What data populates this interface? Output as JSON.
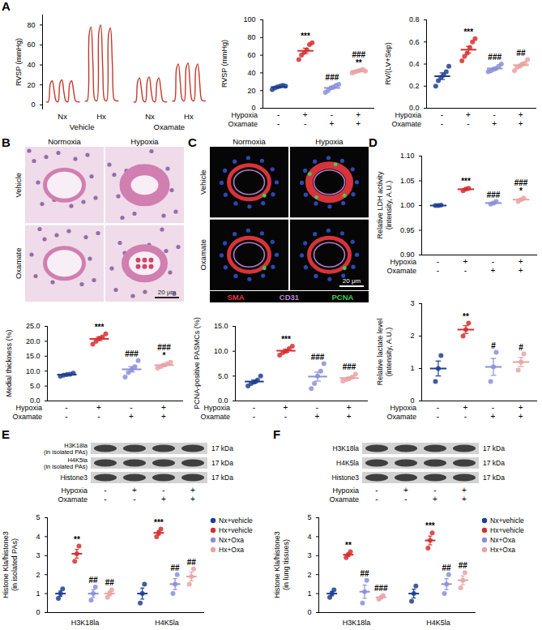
{
  "panel_labels": [
    "A",
    "B",
    "C",
    "D",
    "E",
    "F"
  ],
  "chart_data": [
    {
      "panel": "A",
      "type": "line",
      "ylabel": "RVSP (mmHg)",
      "ylim": [
        -5,
        90
      ],
      "yticks": [
        0,
        20,
        40,
        60,
        80
      ],
      "series": [
        {
          "name": "Nx",
          "group": "Vehicle",
          "color": "#c0392b",
          "values": [
            3,
            3,
            21,
            24,
            14,
            4,
            3,
            22,
            25,
            13,
            4,
            3,
            21,
            24,
            14,
            4,
            3,
            3
          ]
        },
        {
          "name": "Hx",
          "group": "Vehicle",
          "color": "#c0392b",
          "values": [
            4,
            4,
            70,
            78,
            40,
            5,
            4,
            72,
            80,
            38,
            5,
            4,
            70,
            77,
            40,
            5,
            4,
            4
          ]
        },
        {
          "name": "Nx",
          "group": "Oxamate",
          "color": "#c0392b",
          "values": [
            3,
            3,
            23,
            27,
            15,
            4,
            3,
            24,
            28,
            14,
            4,
            3,
            23,
            27,
            15,
            4,
            3,
            3
          ]
        },
        {
          "name": "Hx",
          "group": "Oxamate",
          "color": "#c0392b",
          "values": [
            4,
            4,
            36,
            41,
            22,
            5,
            4,
            37,
            42,
            21,
            5,
            4,
            36,
            41,
            22,
            5,
            4,
            4
          ]
        }
      ]
    },
    {
      "panel": "A",
      "type": "dot",
      "ylabel": "RVSP (mmHg)",
      "ylim": [
        0,
        100
      ],
      "yticks": [
        0,
        20,
        40,
        60,
        80,
        100
      ],
      "colors": [
        "#1f3f8f",
        "#d62f2f",
        "#8c8fd9",
        "#e9a3a3"
      ],
      "values": [
        24,
        65,
        23,
        42
      ],
      "errors": [
        0.7,
        3.0,
        1.4,
        0.6
      ],
      "points": [
        [
          21,
          23,
          24,
          25,
          26,
          25
        ],
        [
          55,
          60,
          63,
          66,
          72,
          74
        ],
        [
          18,
          20,
          23,
          24,
          26,
          27
        ],
        [
          40,
          41,
          42,
          43,
          44,
          42
        ]
      ],
      "significance": [
        [],
        [
          "***"
        ],
        [
          "###"
        ],
        [
          "###",
          "**"
        ]
      ],
      "conditions": [
        {
          "name": "Hypoxia",
          "signs": [
            "-",
            "+",
            "-",
            "+"
          ]
        },
        {
          "name": "Oxamate",
          "signs": [
            "-",
            "-",
            "+",
            "+"
          ]
        }
      ]
    },
    {
      "panel": "A",
      "type": "dot",
      "ylabel": "RV/(LV+Sep)",
      "ylim": [
        0,
        0.8
      ],
      "yticks": [
        {
          "value": 0,
          "label": "0.0"
        },
        0.2,
        0.4,
        0.6,
        0.8
      ],
      "colors": [
        "#1f3f8f",
        "#d62f2f",
        "#8c8fd9",
        "#e9a3a3"
      ],
      "values": [
        0.29,
        0.53,
        0.36,
        0.39
      ],
      "errors": [
        0.03,
        0.03,
        0.01,
        0.01
      ],
      "points": [
        [
          0.2,
          0.25,
          0.28,
          0.3,
          0.33,
          0.38
        ],
        [
          0.43,
          0.47,
          0.5,
          0.55,
          0.6,
          0.63
        ],
        [
          0.33,
          0.34,
          0.35,
          0.36,
          0.38,
          0.4
        ],
        [
          0.34,
          0.37,
          0.38,
          0.4,
          0.41,
          0.44
        ]
      ],
      "significance": [
        [],
        [
          "***"
        ],
        [
          "###"
        ],
        [
          "##"
        ]
      ],
      "conditions": [
        {
          "name": "Hypoxia",
          "signs": [
            "-",
            "+",
            "-",
            "+"
          ]
        },
        {
          "name": "Oxamate",
          "signs": [
            "-",
            "-",
            "+",
            "+"
          ]
        }
      ]
    },
    {
      "panel": "B",
      "type": "dot",
      "ylabel": "Medial thickness (%)",
      "ylim": [
        0,
        25
      ],
      "yticks": [
        {
          "value": 0,
          "label": "0.0"
        },
        {
          "value": 5,
          "label": "5.0"
        },
        {
          "value": 10,
          "label": "10.0"
        },
        {
          "value": 15,
          "label": "15.0"
        },
        {
          "value": 20,
          "label": "20.0"
        },
        {
          "value": 25,
          "label": "25.0"
        }
      ],
      "colors": [
        "#1f3f8f",
        "#d62f2f",
        "#8c8fd9",
        "#e9a3a3"
      ],
      "values": [
        8.8,
        20.8,
        10.6,
        12.0
      ],
      "errors": [
        0.2,
        0.6,
        0.9,
        0.4
      ],
      "points": [
        [
          8.3,
          8.6,
          8.8,
          9.0,
          9.3
        ],
        [
          19.0,
          20.0,
          21.0,
          21.5,
          22.5
        ],
        [
          8.0,
          9.5,
          10.5,
          11.5,
          13.5
        ],
        [
          11.0,
          11.5,
          12.0,
          12.5,
          13.0
        ]
      ],
      "significance": [
        [],
        [
          "***"
        ],
        [
          "###"
        ],
        [
          "###",
          "*"
        ]
      ],
      "conditions": [
        {
          "name": "Hypoxia",
          "signs": [
            "-",
            "+",
            "-",
            "+"
          ]
        },
        {
          "name": "Oxamate",
          "signs": [
            "-",
            "-",
            "+",
            "+"
          ]
        }
      ]
    },
    {
      "panel": "C",
      "type": "dot",
      "ylabel": "PCNA-positive PASMCs (%)",
      "ylim": [
        0,
        15
      ],
      "yticks": [
        {
          "value": 0,
          "label": "0.0"
        },
        {
          "value": 5,
          "label": "5.0"
        },
        {
          "value": 10,
          "label": "10.0"
        },
        {
          "value": 15,
          "label": "15.0"
        }
      ],
      "colors": [
        "#1f3f8f",
        "#d62f2f",
        "#8c8fd9",
        "#e9a3a3"
      ],
      "values": [
        3.9,
        10.1,
        4.9,
        4.6
      ],
      "errors": [
        0.3,
        0.3,
        0.9,
        0.2
      ],
      "points": [
        [
          3.0,
          3.5,
          3.8,
          4.2,
          5.0
        ],
        [
          9.2,
          9.7,
          10.0,
          10.5,
          11.0
        ],
        [
          2.5,
          3.5,
          5.0,
          6.0,
          7.5
        ],
        [
          4.0,
          4.3,
          4.5,
          4.8,
          5.4
        ]
      ],
      "significance": [
        [],
        [
          "***"
        ],
        [
          "###"
        ],
        [
          "###"
        ]
      ],
      "conditions": [
        {
          "name": "Hypoxia",
          "signs": [
            "-",
            "+",
            "-",
            "+"
          ]
        },
        {
          "name": "Oxamate",
          "signs": [
            "-",
            "-",
            "+",
            "+"
          ]
        }
      ]
    },
    {
      "panel": "D",
      "type": "dot",
      "ylabel": "Relative LDH activity\n(intensity, A.U.)",
      "ylim": [
        0.9,
        1.1
      ],
      "yticks": [
        {
          "value": 0.9,
          "label": "0.90"
        },
        0.95,
        {
          "value": 1,
          "label": "1.00"
        },
        1.05,
        {
          "value": 1.1,
          "label": "1.10"
        }
      ],
      "colors": [
        "#1f3f8f",
        "#d62f2f",
        "#8c8fd9",
        "#e9a3a3"
      ],
      "values": [
        1.0,
        1.033,
        1.005,
        1.012
      ],
      "errors": [
        0.001,
        0.002,
        0.002,
        0.002
      ],
      "points": [
        [
          1.0,
          1.0,
          1.001
        ],
        [
          1.03,
          1.033,
          1.035
        ],
        [
          1.003,
          1.005,
          1.008
        ],
        [
          1.008,
          1.012,
          1.015
        ]
      ],
      "significance": [
        [],
        [
          "***"
        ],
        [
          "###"
        ],
        [
          "###",
          "*"
        ]
      ],
      "conditions": [
        {
          "name": "Hypoxia",
          "signs": [
            "-",
            "+",
            "-",
            "+"
          ]
        },
        {
          "name": "Oxamate",
          "signs": [
            "-",
            "-",
            "+",
            "+"
          ]
        }
      ]
    },
    {
      "panel": "D",
      "type": "dot",
      "ylabel": "Relative lactate level\n(intensity, A.U.)",
      "ylim": [
        0,
        3
      ],
      "yticks": [
        0,
        1,
        2,
        3
      ],
      "colors": [
        "#1f3f8f",
        "#d62f2f",
        "#8c8fd9",
        "#e9a3a3"
      ],
      "values": [
        1.0,
        2.2,
        1.05,
        1.2
      ],
      "errors": [
        0.23,
        0.12,
        0.26,
        0.14
      ],
      "points": [
        [
          0.6,
          1.0,
          1.4
        ],
        [
          2.0,
          2.2,
          2.4
        ],
        [
          0.6,
          1.05,
          1.5
        ],
        [
          0.95,
          1.2,
          1.45
        ]
      ],
      "significance": [
        [],
        [
          "**"
        ],
        [
          "#"
        ],
        [
          "#"
        ]
      ],
      "conditions": [
        {
          "name": "Hypoxia",
          "signs": [
            "-",
            "+",
            "-",
            "+"
          ]
        },
        {
          "name": "Oxamate",
          "signs": [
            "-",
            "-",
            "+",
            "+"
          ]
        }
      ]
    },
    {
      "panel": "E",
      "type": "grouped_dot",
      "ylabel": "Histone Kla/histone3\n(in isolated PAs)",
      "ylim": [
        0,
        5
      ],
      "yticks": [
        0,
        1,
        2,
        3,
        4,
        5
      ],
      "categories": [
        "H3K18la",
        "H4K5la"
      ],
      "legend": "top-right",
      "series": [
        {
          "name": "Nx+vehicle",
          "color": "#1f3f8f",
          "values": [
            1.0,
            1.0
          ],
          "errors": [
            0.14,
            0.29
          ],
          "points": [
            [
              0.75,
              1.0,
              1.25
            ],
            [
              0.5,
              1.0,
              1.5
            ]
          ],
          "significance": [
            [],
            []
          ]
        },
        {
          "name": "Hx+vehicle",
          "color": "#d62f2f",
          "values": [
            3.1,
            4.2
          ],
          "errors": [
            0.23,
            0.12
          ],
          "points": [
            [
              2.7,
              3.1,
              3.5
            ],
            [
              4.0,
              4.2,
              4.4
            ]
          ],
          "significance": [
            [
              "**"
            ],
            [
              "***"
            ]
          ]
        },
        {
          "name": "Nx+Oxa",
          "color": "#8c8fd9",
          "values": [
            1.0,
            1.5
          ],
          "errors": [
            0.2,
            0.29
          ],
          "points": [
            [
              0.65,
              1.0,
              1.35
            ],
            [
              1.0,
              1.5,
              2.0
            ]
          ],
          "significance": [
            [
              "##"
            ],
            [
              "##"
            ]
          ]
        },
        {
          "name": "Hx+Oxa",
          "color": "#e9a3a3",
          "values": [
            1.0,
            1.9
          ],
          "errors": [
            0.12,
            0.23
          ],
          "points": [
            [
              0.8,
              1.0,
              1.2
            ],
            [
              1.5,
              1.9,
              2.3
            ]
          ],
          "significance": [
            [
              "##"
            ],
            [
              "##"
            ]
          ]
        }
      ]
    },
    {
      "panel": "F",
      "type": "grouped_dot",
      "ylabel": "Histone Kla/histone3\n(in lung tissues)",
      "ylim": [
        0,
        5
      ],
      "yticks": [
        0,
        1,
        2,
        3,
        4,
        5
      ],
      "categories": [
        "H3K18la",
        "H4K5la"
      ],
      "legend": "top-right",
      "series": [
        {
          "name": "Nx+vehicle",
          "color": "#1f3f8f",
          "values": [
            1.0,
            1.0
          ],
          "errors": [
            0.12,
            0.23
          ],
          "points": [
            [
              0.8,
              1.0,
              1.2
            ],
            [
              0.6,
              1.0,
              1.4
            ]
          ],
          "significance": [
            [],
            []
          ]
        },
        {
          "name": "Hx+vehicle",
          "color": "#d62f2f",
          "values": [
            3.05,
            3.8
          ],
          "errors": [
            0.09,
            0.23
          ],
          "points": [
            [
              2.9,
              3.05,
              3.2
            ],
            [
              3.4,
              3.8,
              4.2
            ]
          ],
          "significance": [
            [
              "**"
            ],
            [
              "***"
            ]
          ]
        },
        {
          "name": "Nx+Oxa",
          "color": "#8c8fd9",
          "values": [
            1.1,
            1.5
          ],
          "errors": [
            0.35,
            0.29
          ],
          "points": [
            [
              0.5,
              1.1,
              1.7
            ],
            [
              1.0,
              1.5,
              2.0
            ]
          ],
          "significance": [
            [
              "##"
            ],
            [
              "##"
            ]
          ]
        },
        {
          "name": "Hx+Oxa",
          "color": "#e9a3a3",
          "values": [
            0.8,
            1.7
          ],
          "errors": [
            0.06,
            0.23
          ],
          "points": [
            [
              0.7,
              0.8,
              0.9
            ],
            [
              1.3,
              1.7,
              2.1
            ]
          ],
          "significance": [
            [
              "###"
            ],
            [
              "##"
            ]
          ]
        }
      ]
    }
  ],
  "images": [
    {
      "panel": "B",
      "kind": "histology",
      "columns": [
        "Normoxia",
        "Hypoxia"
      ],
      "rows": [
        "Vehicle",
        "Oxamate"
      ],
      "scale_bar": "20 μm"
    },
    {
      "panel": "C",
      "kind": "immunofluorescence",
      "columns": [
        "Normoxia",
        "Hypoxia"
      ],
      "rows": [
        "Vehicle",
        "Oxamate"
      ],
      "scale_bar": "20 μm",
      "stains": [
        {
          "name": "SMA",
          "color": "#e0393e"
        },
        {
          "name": "CD31",
          "color": "#c08ad8"
        },
        {
          "name": "PCNA",
          "color": "#3fcf55"
        }
      ]
    }
  ],
  "blots": [
    {
      "panel": "E",
      "rows": [
        [
          "H3K18la",
          "(in isolated PAs)"
        ],
        [
          "H4K5la",
          "(in isolated PAs)"
        ],
        [
          "Histone3"
        ]
      ],
      "size": "17 kDa",
      "conditions": [
        {
          "name": "Hypoxia",
          "signs": [
            "-",
            "+",
            "-",
            "+"
          ]
        },
        {
          "name": "Oxamate",
          "signs": [
            "-",
            "-",
            "+",
            "+"
          ]
        }
      ]
    },
    {
      "panel": "F",
      "rows": [
        [
          "H3K18la"
        ],
        [
          "H4K5la"
        ],
        [
          "Histone3"
        ]
      ],
      "size": "17 kDa",
      "conditions": [
        {
          "name": "Hypoxia",
          "signs": [
            "-",
            "+",
            "-",
            "+"
          ]
        },
        {
          "name": "Oxamate",
          "signs": [
            "-",
            "-",
            "+",
            "+"
          ]
        }
      ]
    }
  ]
}
